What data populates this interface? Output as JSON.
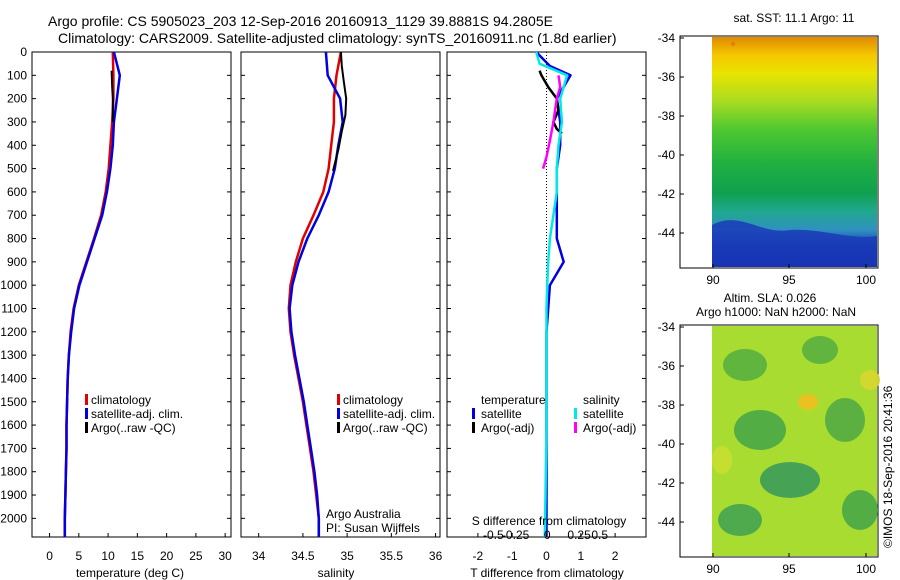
{
  "header": {
    "line1": "Argo profile: CS 5905023_203 12-Sep-2016 20160913_1129 39.8881S 94.2805E",
    "line2": "Climatology: CARS2009. Satellite-adjusted climatology: synTS_20160911.nc (1.8d earlier)"
  },
  "colors": {
    "climatology": "#e00000",
    "satellite": "#0000e0",
    "argo": "#000000",
    "sal_satellite": "#00e8e8",
    "sal_argo": "#ff00ff"
  },
  "depth_ticks": [
    "0",
    "100",
    "200",
    "300",
    "400",
    "500",
    "600",
    "700",
    "800",
    "900",
    "1000",
    "1100",
    "1200",
    "1300",
    "1400",
    "1500",
    "1600",
    "1700",
    "1800",
    "1900",
    "2000"
  ],
  "panels": {
    "temperature": {
      "xlabel": "temperature (deg C)",
      "xticks": [
        "0",
        "5",
        "10",
        "15",
        "20",
        "25",
        "30"
      ],
      "legend": [
        "climatology",
        "satellite-adj. clim.",
        "Argo(..raw -QC)"
      ]
    },
    "salinity": {
      "xlabel": "salinity",
      "xticks": [
        "34",
        "34.5",
        "35",
        "35.5",
        "36"
      ],
      "legend": [
        "climatology",
        "satellite-adj. clim.",
        "Argo(..raw -QC)"
      ],
      "note1": "Argo Australia",
      "note2": "PI: Susan Wijffels"
    },
    "difference": {
      "xlabel": "T difference from climatology",
      "xticks": [
        "-2",
        "-1",
        "0",
        "1",
        "2"
      ],
      "top_label": "S difference from climatology",
      "top_ticks": [
        "-0.5",
        "-0.25",
        "0",
        "0.25",
        "0.5"
      ],
      "legend_temp_title": "temperature",
      "legend_sal_title": "salinity",
      "legend_items": [
        "satellite",
        "Argo(-adj)",
        "satellite",
        "Argo(-adj)"
      ]
    },
    "maps": {
      "sst_title": "sat. SST: 11.1 Argo: 11",
      "sla_title1": "Altim. SLA: 0.026",
      "sla_title2": "Argo h1000: NaN h2000: NaN",
      "yticks": [
        "-34",
        "-36",
        "-38",
        "-40",
        "-42",
        "-44"
      ],
      "xticks": [
        "90",
        "95",
        "100"
      ],
      "credit": "©IMOS 18-Sep-2016 20:41:36"
    }
  },
  "chart_data": [
    {
      "type": "line",
      "title": "",
      "xlabel": "temperature (deg C)",
      "ylabel": "",
      "xlim": [
        -3,
        31
      ],
      "ylim": [
        2080,
        0
      ],
      "series": [
        {
          "name": "climatology",
          "x": [
            10.8,
            10.9,
            10.9,
            10.7,
            10.4,
            10.1,
            9.6,
            8.8,
            7.6,
            6.3,
            5.0,
            4.1,
            3.6,
            3.3,
            3.1,
            3.0,
            2.9,
            2.9,
            2.8,
            2.7,
            2.6,
            2.6
          ],
          "y": [
            0,
            100,
            200,
            300,
            400,
            500,
            600,
            700,
            800,
            900,
            1000,
            1100,
            1200,
            1300,
            1400,
            1500,
            1600,
            1700,
            1800,
            1900,
            2000,
            2080
          ]
        },
        {
          "name": "satellite-adj. clim.",
          "x": [
            11.0,
            12.0,
            11.5,
            11.0,
            10.8,
            10.4,
            9.8,
            9.0,
            7.7,
            6.4,
            5.1,
            4.2,
            3.7,
            3.3,
            3.1,
            3.0,
            2.9,
            2.9,
            2.8,
            2.7,
            2.6,
            2.6
          ],
          "y": [
            0,
            100,
            200,
            300,
            400,
            500,
            600,
            700,
            800,
            900,
            1000,
            1100,
            1200,
            1300,
            1400,
            1500,
            1600,
            1700,
            1800,
            1900,
            2000,
            2080
          ]
        },
        {
          "name": "Argo(..raw -QC)",
          "x": [
            10.6,
            10.7,
            10.8,
            10.8,
            10.8
          ],
          "y": [
            80,
            150,
            200,
            250,
            300
          ]
        }
      ]
    },
    {
      "type": "line",
      "title": "",
      "xlabel": "salinity",
      "ylabel": "",
      "xlim": [
        33.8,
        36.05
      ],
      "ylim": [
        2080,
        0
      ],
      "series": [
        {
          "name": "climatology",
          "x": [
            34.93,
            34.88,
            34.85,
            34.85,
            34.82,
            34.79,
            34.73,
            34.62,
            34.5,
            34.42,
            34.36,
            34.34,
            34.36,
            34.4,
            34.45,
            34.5,
            34.54,
            34.58,
            34.62,
            34.65,
            34.68,
            34.68
          ],
          "y": [
            0,
            100,
            200,
            300,
            400,
            500,
            600,
            700,
            800,
            900,
            1000,
            1100,
            1200,
            1300,
            1400,
            1500,
            1600,
            1700,
            1800,
            1900,
            2000,
            2080
          ]
        },
        {
          "name": "satellite-adj. clim.",
          "x": [
            34.76,
            34.78,
            34.92,
            34.95,
            34.9,
            34.86,
            34.79,
            34.68,
            34.55,
            34.45,
            34.38,
            34.35,
            34.37,
            34.41,
            34.46,
            34.51,
            34.55,
            34.59,
            34.63,
            34.66,
            34.68,
            34.68
          ],
          "y": [
            0,
            100,
            200,
            300,
            400,
            500,
            600,
            700,
            800,
            900,
            1000,
            1100,
            1200,
            1300,
            1400,
            1500,
            1600,
            1700,
            1800,
            1900,
            2000,
            2080
          ]
        },
        {
          "name": "Argo(..raw -QC)",
          "x": [
            34.93,
            34.94,
            34.96,
            34.99,
            34.98,
            34.94,
            34.9,
            34.84
          ],
          "y": [
            0,
            60,
            120,
            200,
            270,
            340,
            420,
            510
          ]
        }
      ]
    },
    {
      "type": "line",
      "title": "",
      "xlabel": "T difference from climatology",
      "ylabel": "",
      "xlim": [
        -2.9,
        2.9
      ],
      "ylim": [
        2080,
        0
      ],
      "series": [
        {
          "name": "satellite",
          "x": [
            -0.3,
            0.1,
            0.7,
            0.3,
            0.4,
            0.4,
            0.3,
            0.3,
            0.3,
            0.3,
            0.5,
            0.1,
            0.05,
            0,
            0,
            0,
            0,
            0,
            0,
            0,
            0
          ],
          "y": [
            0,
            60,
            100,
            200,
            300,
            400,
            500,
            600,
            700,
            800,
            900,
            1000,
            1100,
            1200,
            1300,
            1400,
            1500,
            1600,
            1800,
            2000,
            2080
          ]
        },
        {
          "name": "Argo(-adj)",
          "x": [
            -0.2,
            -0.15,
            0.05,
            0.3,
            0.35,
            0.2,
            0.3,
            0.45
          ],
          "y": [
            80,
            100,
            150,
            200,
            250,
            300,
            330,
            350
          ]
        },
        {
          "name": "satellite",
          "x": [
            -0.3,
            -0.2,
            0.6,
            0.4,
            0.45,
            0.35,
            0.3,
            0.3,
            0.2,
            0.1,
            0.05,
            0.02,
            0,
            0,
            0,
            0,
            -0.02,
            -0.03,
            -0.04,
            -0.05
          ],
          "y": [
            0,
            50,
            100,
            200,
            300,
            400,
            500,
            600,
            700,
            800,
            900,
            1000,
            1100,
            1200,
            1400,
            1600,
            1800,
            1900,
            2000,
            2080
          ]
        },
        {
          "name": "Argo(-adj)",
          "x": [
            0.35,
            0.4,
            0.3,
            0.25,
            0.2,
            0.1,
            0.0,
            -0.1
          ],
          "y": [
            100,
            150,
            200,
            250,
            300,
            380,
            450,
            500
          ]
        }
      ]
    }
  ]
}
